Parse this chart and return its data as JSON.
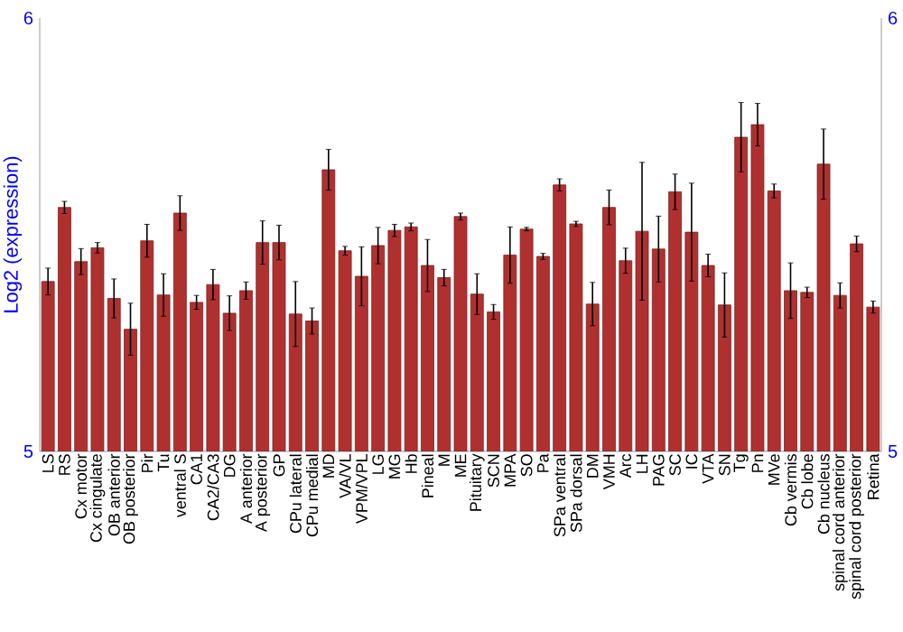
{
  "chart_data": {
    "type": "bar",
    "ylabel": "Log2 (expression)",
    "color": "#b03030",
    "categories": [
      "LS",
      "RS",
      "Cx motor",
      "Cx cingulate",
      "OB anterior",
      "OB posterior",
      "Pir",
      "Tu",
      "ventral S",
      "CA1",
      "CA2/CA3",
      "DG",
      "A anterior",
      "A posterior",
      "GP",
      "CPu lateral",
      "CPu medial",
      "MD",
      "VA/VL",
      "VPM/VPL",
      "LG",
      "MG",
      "Hb",
      "Pineal",
      "M",
      "ME",
      "Pituitary",
      "SCN",
      "MPA",
      "SO",
      "Pa",
      "SPa ventral",
      "SPa dorsal",
      "DM",
      "VMH",
      "Arc",
      "LH",
      "PAG",
      "SC",
      "IC",
      "VTA",
      "SN",
      "Tg",
      "Pn",
      "MVe",
      "Cb vermis",
      "Cb lobe",
      "Cb nucleus",
      "spinal cord anterior",
      "spinal cord posterior",
      "Retina"
    ],
    "values": [
      5.392,
      5.563,
      5.438,
      5.47,
      5.353,
      5.282,
      5.486,
      5.361,
      5.55,
      5.344,
      5.385,
      5.319,
      5.371,
      5.482,
      5.482,
      5.317,
      5.301,
      5.65,
      5.463,
      5.404,
      5.475,
      5.51,
      5.518,
      5.429,
      5.401,
      5.542,
      5.363,
      5.322,
      5.453,
      5.513,
      5.45,
      5.615,
      5.525,
      5.34,
      5.563,
      5.44,
      5.508,
      5.467,
      5.599,
      5.506,
      5.429,
      5.338,
      5.725,
      5.754,
      5.601,
      5.371,
      5.367,
      5.663,
      5.36,
      5.479,
      5.333
    ],
    "errors": [
      0.031,
      0.014,
      0.03,
      0.012,
      0.045,
      0.06,
      0.038,
      0.049,
      0.04,
      0.016,
      0.035,
      0.04,
      0.02,
      0.05,
      0.04,
      0.075,
      0.03,
      0.047,
      0.01,
      0.068,
      0.042,
      0.014,
      0.009,
      0.06,
      0.019,
      0.008,
      0.047,
      0.017,
      0.065,
      0.004,
      0.007,
      0.014,
      0.006,
      0.05,
      0.04,
      0.029,
      0.159,
      0.076,
      0.041,
      0.113,
      0.026,
      0.074,
      0.08,
      0.049,
      0.016,
      0.064,
      0.012,
      0.081,
      0.029,
      0.018,
      0.014
    ],
    "ylim": [
      5,
      6
    ],
    "yticks": [
      5,
      6
    ],
    "y2lim": [
      5,
      6
    ],
    "y2ticks": [
      5,
      6
    ]
  }
}
